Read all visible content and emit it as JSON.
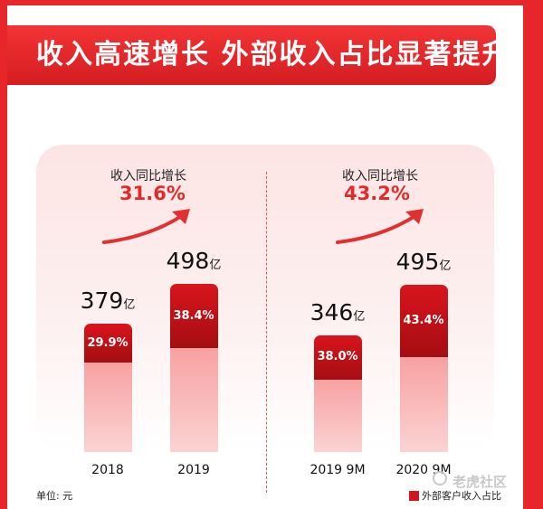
{
  "title": "收入高速增长 外部收入占比显著提升",
  "unit_note": "单位: 元",
  "legend": "外部客户收入占比",
  "watermark": "老虎社区",
  "colors": {
    "accent": "#e6262a",
    "external_bar": "#c8121a",
    "rest_bar": "#f8b5b5"
  },
  "chart_data": [
    {
      "type": "bar",
      "categories": [
        "2018",
        "2019"
      ],
      "totals": [
        379,
        498
      ],
      "total_unit": "亿",
      "external_share_pct": [
        29.9,
        38.4
      ],
      "external_share_labels": [
        "29.9%",
        "38.4%"
      ],
      "growth_label": "收入同比增长",
      "growth_value": "31.6%"
    },
    {
      "type": "bar",
      "categories": [
        "2019 9M",
        "2020 9M"
      ],
      "totals": [
        346,
        495
      ],
      "total_unit": "亿",
      "external_share_pct": [
        38.0,
        43.4
      ],
      "external_share_labels": [
        "38.0%",
        "43.4%"
      ],
      "growth_label": "收入同比增长",
      "growth_value": "43.2%"
    }
  ]
}
